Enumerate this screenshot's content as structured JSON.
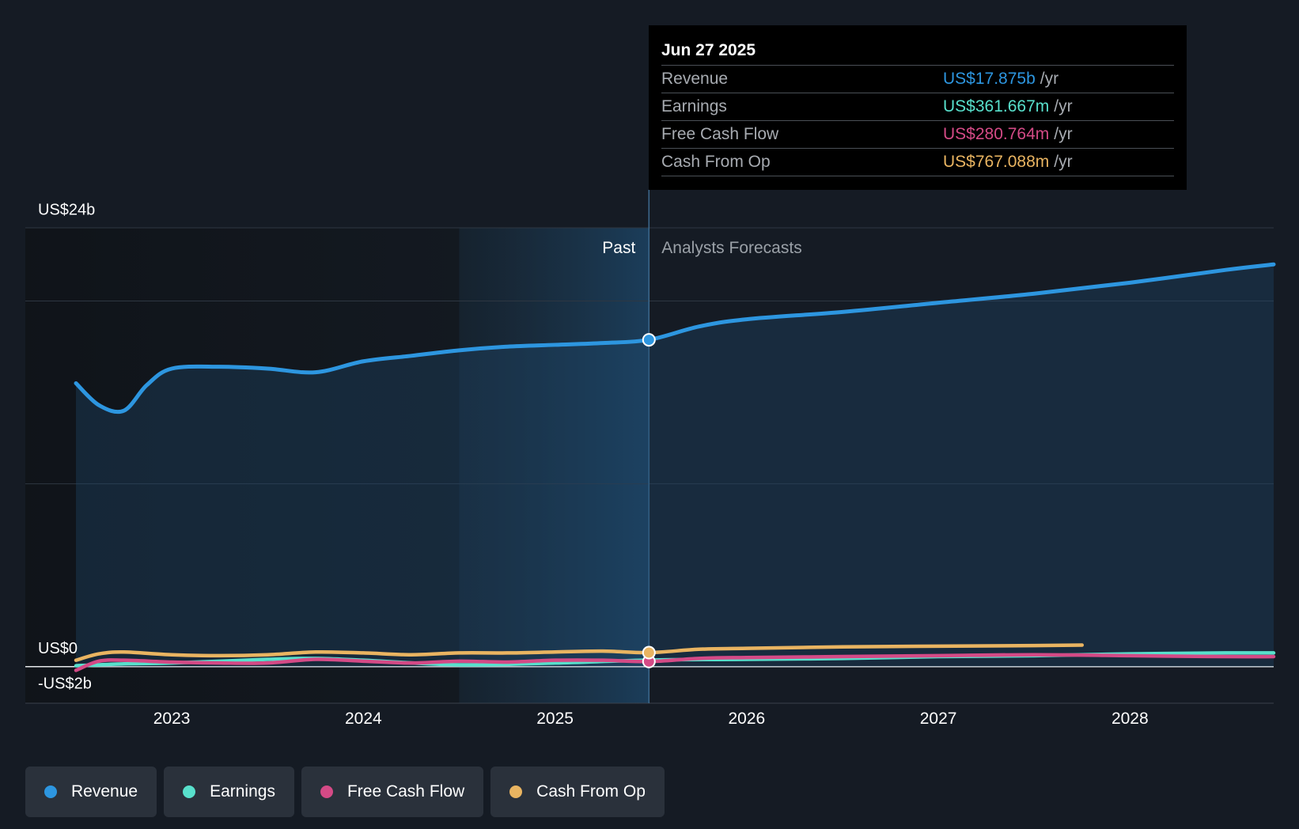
{
  "colors": {
    "revenue": "#2d96e0",
    "earnings": "#58e0cc",
    "fcf": "#d44a86",
    "cfo": "#e9b461"
  },
  "tooltip": {
    "date": "Jun 27 2025",
    "rows": [
      {
        "label": "Revenue",
        "value": "US$17.875b",
        "unit": "/yr",
        "color": "#2d96e0"
      },
      {
        "label": "Earnings",
        "value": "US$361.667m",
        "unit": "/yr",
        "color": "#58e0cc"
      },
      {
        "label": "Free Cash Flow",
        "value": "US$280.764m",
        "unit": "/yr",
        "color": "#d44a86"
      },
      {
        "label": "Cash From Op",
        "value": "US$767.088m",
        "unit": "/yr",
        "color": "#e9b461"
      }
    ]
  },
  "chart_data": {
    "type": "line",
    "title": "",
    "xlabel": "",
    "ylabel": "",
    "ylim": [
      -2,
      24
    ],
    "xlim": [
      2022.5,
      2028.75
    ],
    "y_tick_labels": [
      {
        "value": 24,
        "label": "US$24b"
      },
      {
        "value": 0,
        "label": "US$0"
      },
      {
        "value": -2,
        "label": "-US$2b"
      }
    ],
    "x_ticks": [
      2023,
      2024,
      2025,
      2026,
      2027,
      2028
    ],
    "x_tick_labels": [
      "2023",
      "2024",
      "2025",
      "2026",
      "2027",
      "2028"
    ],
    "highlight_x": 2025.49,
    "past_band_start": 2024.5,
    "past_label": "Past",
    "forecast_label": "Analysts Forecasts",
    "series": [
      {
        "name": "Revenue",
        "key": "revenue",
        "x": [
          2022.5,
          2022.62,
          2022.75,
          2022.87,
          2023.0,
          2023.25,
          2023.5,
          2023.75,
          2024.0,
          2024.25,
          2024.5,
          2024.75,
          2025.0,
          2025.25,
          2025.49,
          2025.75,
          2026.0,
          2026.5,
          2027.0,
          2027.5,
          2028.0,
          2028.5,
          2028.75
        ],
        "values": [
          15.5,
          14.3,
          14.0,
          15.4,
          16.3,
          16.4,
          16.3,
          16.1,
          16.7,
          17.0,
          17.3,
          17.5,
          17.6,
          17.7,
          17.875,
          18.6,
          19.0,
          19.4,
          19.9,
          20.4,
          21.0,
          21.7,
          22.0
        ]
      },
      {
        "name": "Earnings",
        "key": "earnings",
        "x": [
          2022.5,
          2022.75,
          2023.0,
          2023.5,
          2023.75,
          2024.0,
          2024.5,
          2025.0,
          2025.49,
          2026.0,
          2026.5,
          2027.0,
          2027.5,
          2028.0,
          2028.5,
          2028.75
        ],
        "values": [
          0.05,
          0.15,
          0.2,
          0.4,
          0.45,
          0.35,
          0.1,
          0.2,
          0.36,
          0.4,
          0.45,
          0.55,
          0.6,
          0.7,
          0.75,
          0.75
        ]
      },
      {
        "name": "Free Cash Flow",
        "key": "fcf",
        "x": [
          2022.5,
          2022.62,
          2022.75,
          2023.0,
          2023.25,
          2023.5,
          2023.75,
          2024.0,
          2024.25,
          2024.5,
          2024.75,
          2025.0,
          2025.25,
          2025.49,
          2025.75,
          2026.0,
          2026.5,
          2027.0,
          2027.5,
          2028.0,
          2028.5,
          2028.75
        ],
        "values": [
          -0.2,
          0.3,
          0.35,
          0.25,
          0.2,
          0.2,
          0.4,
          0.3,
          0.2,
          0.3,
          0.25,
          0.35,
          0.35,
          0.28,
          0.45,
          0.5,
          0.55,
          0.6,
          0.65,
          0.6,
          0.55,
          0.55
        ]
      },
      {
        "name": "Cash From Op",
        "key": "cfo",
        "x": [
          2022.5,
          2022.62,
          2022.75,
          2023.0,
          2023.25,
          2023.5,
          2023.75,
          2024.0,
          2024.25,
          2024.5,
          2024.75,
          2025.0,
          2025.25,
          2025.49,
          2025.75,
          2026.0,
          2026.5,
          2027.0,
          2027.5,
          2027.75
        ],
        "values": [
          0.35,
          0.7,
          0.8,
          0.65,
          0.6,
          0.65,
          0.8,
          0.75,
          0.65,
          0.75,
          0.75,
          0.8,
          0.85,
          0.767,
          0.95,
          1.0,
          1.08,
          1.12,
          1.15,
          1.18
        ]
      }
    ]
  },
  "legend": [
    {
      "label": "Revenue",
      "key": "revenue"
    },
    {
      "label": "Earnings",
      "key": "earnings"
    },
    {
      "label": "Free Cash Flow",
      "key": "fcf"
    },
    {
      "label": "Cash From Op",
      "key": "cfo"
    }
  ]
}
